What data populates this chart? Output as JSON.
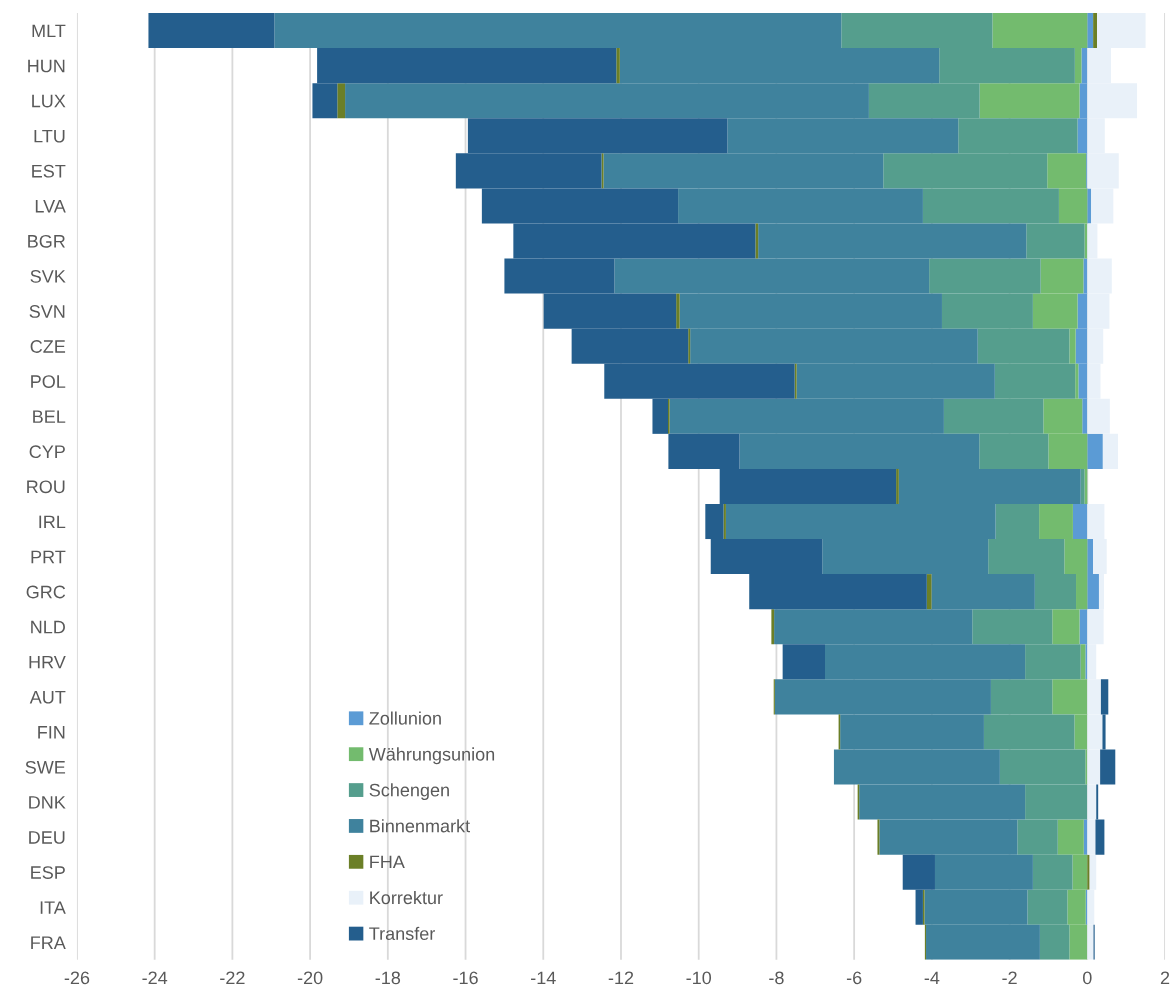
{
  "chart_data": {
    "type": "bar",
    "orientation": "horizontal",
    "stacked": true,
    "categories": [
      "MLT",
      "HUN",
      "LUX",
      "LTU",
      "EST",
      "LVA",
      "BGR",
      "SVK",
      "SVN",
      "CZE",
      "POL",
      "BEL",
      "CYP",
      "ROU",
      "IRL",
      "PRT",
      "GRC",
      "NLD",
      "HRV",
      "AUT",
      "FIN",
      "SWE",
      "DNK",
      "DEU",
      "ESP",
      "ITA",
      "FRA"
    ],
    "series": [
      {
        "name": "Zollunion",
        "color": "#5b9bd5",
        "values": [
          0.15,
          -0.15,
          -0.2,
          -0.25,
          -0.03,
          0.1,
          null,
          -0.1,
          -0.25,
          -0.3,
          -0.23,
          -0.13,
          0.4,
          null,
          -0.37,
          0.15,
          0.3,
          -0.2,
          -0.05,
          null,
          null,
          null,
          null,
          -0.09,
          null,
          -0.04,
          null
        ]
      },
      {
        "name": "Währungsunion",
        "color": "#73bb6e",
        "values": [
          -2.44,
          -0.17,
          -2.57,
          null,
          -1.0,
          -0.73,
          -0.07,
          -1.1,
          -1.15,
          -0.16,
          -0.08,
          -1.0,
          -1.0,
          -0.07,
          -0.87,
          -0.59,
          -0.29,
          -0.7,
          -0.12,
          -0.9,
          -0.33,
          -0.05,
          null,
          -0.67,
          -0.38,
          -0.47,
          -0.46
        ]
      },
      {
        "name": "Schengen",
        "color": "#559e8d",
        "values": [
          -3.89,
          -3.49,
          -2.85,
          -3.07,
          -4.22,
          -3.5,
          -1.5,
          -2.87,
          -2.34,
          -2.36,
          -2.07,
          -2.56,
          -1.78,
          -0.1,
          -1.12,
          -1.96,
          -1.06,
          -2.06,
          -1.43,
          -1.58,
          -2.33,
          -2.2,
          -1.6,
          -1.04,
          -1.02,
          -1.03,
          -0.76
        ]
      },
      {
        "name": "Binnenmarkt",
        "color": "#3f829d",
        "values": [
          -14.59,
          -8.22,
          -13.48,
          -5.94,
          -7.2,
          -6.3,
          -6.9,
          -8.1,
          -6.75,
          -7.4,
          -5.1,
          -7.06,
          -6.17,
          -4.68,
          -6.94,
          -4.27,
          -2.66,
          -5.1,
          -5.15,
          -5.56,
          -3.7,
          -4.27,
          -4.27,
          -3.55,
          -2.52,
          -2.65,
          -2.93
        ]
      },
      {
        "name": "FHA",
        "color": "#6b7f27",
        "values": [
          0.1,
          -0.09,
          -0.2,
          null,
          -0.05,
          null,
          -0.07,
          null,
          -0.09,
          -0.05,
          -0.05,
          -0.04,
          null,
          -0.07,
          -0.06,
          null,
          -0.12,
          -0.07,
          null,
          -0.03,
          -0.04,
          null,
          -0.04,
          -0.05,
          0.06,
          -0.04,
          -0.03
        ]
      },
      {
        "name": "Korrektur",
        "color": "#e9f1f9",
        "values": [
          1.25,
          0.61,
          1.28,
          0.45,
          0.81,
          0.57,
          0.26,
          0.63,
          0.57,
          0.41,
          0.34,
          0.58,
          0.39,
          null,
          0.44,
          0.35,
          0.13,
          0.42,
          0.23,
          0.35,
          0.39,
          0.33,
          0.23,
          0.21,
          0.17,
          0.18,
          0.16
        ]
      },
      {
        "name": "Transfer",
        "color": "#245e8d",
        "values": [
          -3.24,
          -7.7,
          -0.64,
          -6.68,
          -3.75,
          -5.05,
          -6.23,
          -2.83,
          -3.41,
          -3.0,
          -4.9,
          -0.4,
          -1.83,
          -4.54,
          -0.47,
          -2.87,
          -4.57,
          null,
          -1.09,
          0.19,
          0.08,
          0.39,
          0.05,
          0.23,
          -0.83,
          -0.19,
          0.03
        ]
      }
    ],
    "xlim": [
      -26,
      2
    ],
    "xticks": [
      -26,
      -24,
      -22,
      -20,
      -18,
      -16,
      -14,
      -12,
      -10,
      -8,
      -6,
      -4,
      -2,
      0,
      2
    ],
    "grid": "x",
    "legend": "bottom left"
  }
}
